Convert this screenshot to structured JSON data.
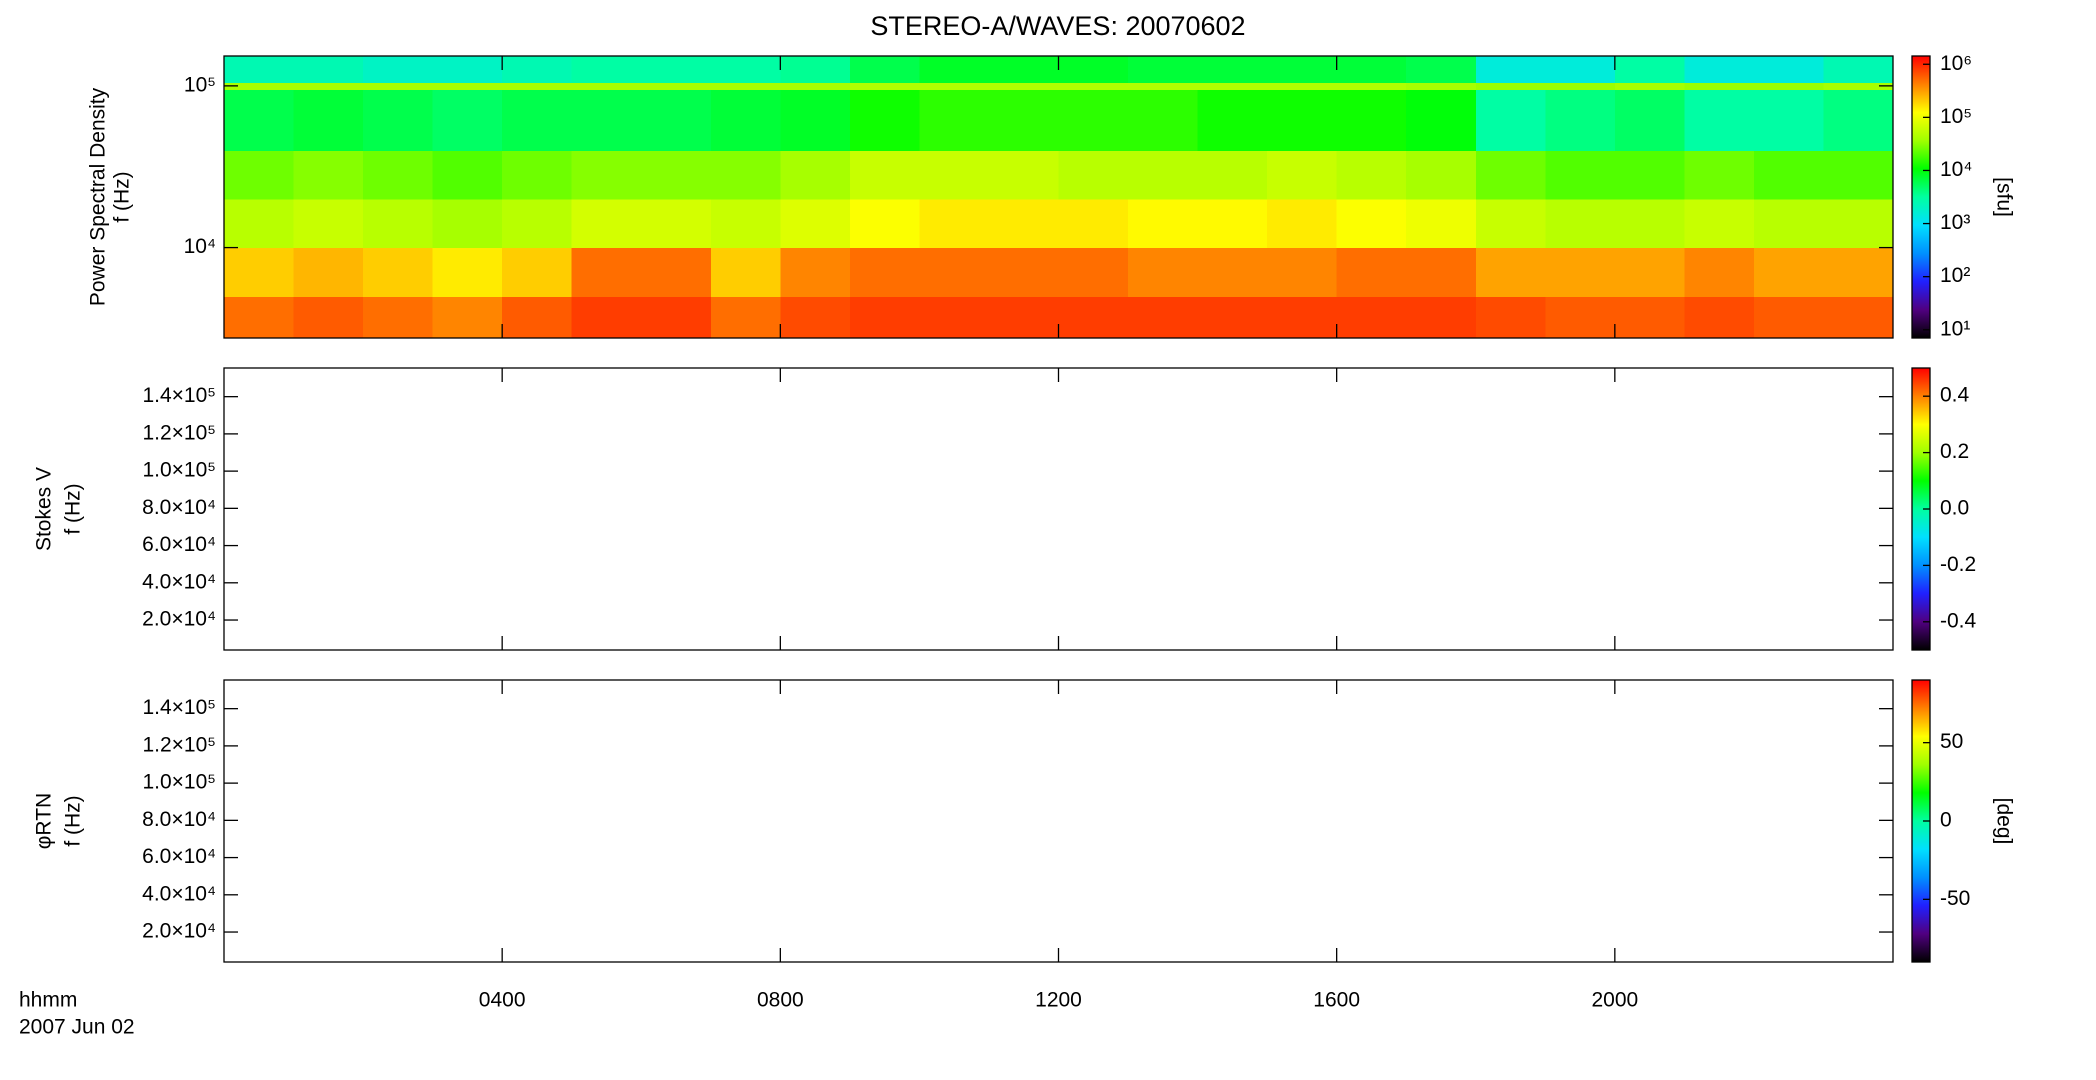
{
  "chart_data": [
    {
      "type": "heatmap",
      "title": "STEREO-A/WAVES: 20070602",
      "ylabel": [
        "Power Spectral Density",
        "f (Hz)"
      ],
      "ylog": true,
      "ylim": [
        2760,
        153000
      ],
      "yticks": [
        {
          "value": 10000,
          "label": "10⁴"
        },
        {
          "value": 100000,
          "label": "10⁵"
        }
      ],
      "xlim": [
        0,
        24
      ],
      "x_edges": [
        0,
        1,
        2,
        3,
        4,
        5,
        6,
        7,
        8,
        9,
        10,
        11,
        12,
        13,
        14,
        15,
        16,
        17,
        18,
        19,
        20,
        21,
        22,
        23,
        24
      ],
      "y_edges": [
        2760,
        5000,
        10000,
        20000,
        40000,
        95000,
        105000,
        153000
      ],
      "z": [
        [
          500000,
          600000,
          500000,
          400000,
          600000,
          800000,
          800000,
          500000,
          700000,
          800000,
          800000,
          800000,
          800000,
          800000,
          800000,
          800000,
          800000,
          800000,
          700000,
          600000,
          600000,
          700000,
          600000,
          600000
        ],
        [
          200000,
          250000,
          200000,
          150000,
          200000,
          500000,
          500000,
          200000,
          400000,
          500000,
          500000,
          500000,
          500000,
          400000,
          400000,
          400000,
          500000,
          500000,
          300000,
          300000,
          300000,
          400000,
          300000,
          300000
        ],
        [
          50000,
          60000,
          50000,
          40000,
          50000,
          70000,
          70000,
          60000,
          80000,
          120000,
          150000,
          150000,
          150000,
          130000,
          130000,
          150000,
          120000,
          100000,
          60000,
          50000,
          50000,
          60000,
          50000,
          50000
        ],
        [
          25000,
          30000,
          25000,
          20000,
          25000,
          30000,
          30000,
          30000,
          40000,
          60000,
          60000,
          60000,
          50000,
          50000,
          50000,
          60000,
          50000,
          40000,
          25000,
          20000,
          20000,
          25000,
          20000,
          20000
        ],
        [
          6000,
          7000,
          6000,
          5000,
          6000,
          6000,
          6000,
          7000,
          8000,
          12000,
          15000,
          15000,
          15000,
          15000,
          12000,
          12000,
          12000,
          10000,
          3000,
          4000,
          5000,
          3000,
          3000,
          4000
        ],
        [
          40000,
          40000,
          40000,
          40000,
          40000,
          40000,
          40000,
          40000,
          40000,
          45000,
          45000,
          45000,
          45000,
          45000,
          45000,
          45000,
          45000,
          40000,
          35000,
          35000,
          40000,
          35000,
          35000,
          40000
        ],
        [
          2500,
          2500,
          2000,
          2000,
          2500,
          3000,
          3000,
          3000,
          3500,
          6000,
          8000,
          8000,
          8000,
          7000,
          7000,
          7000,
          7000,
          6000,
          1500,
          1500,
          3000,
          1500,
          1500,
          2500
        ]
      ],
      "colormap": [
        "#000000",
        "#500080",
        "#2020ff",
        "#0090ff",
        "#00e0ff",
        "#00ffa0",
        "#00ff00",
        "#a0ff00",
        "#ffff00",
        "#ff8000",
        "#ff0000"
      ],
      "clog": true,
      "clim": [
        7,
        1430000
      ],
      "cticks": [
        {
          "value": 10,
          "label": "10¹"
        },
        {
          "value": 100,
          "label": "10²"
        },
        {
          "value": 1000,
          "label": "10³"
        },
        {
          "value": 10000,
          "label": "10⁴"
        },
        {
          "value": 100000,
          "label": "10⁵"
        },
        {
          "value": 1000000,
          "label": "10⁶"
        }
      ],
      "clabel": "[sfu]"
    },
    {
      "type": "heatmap",
      "ylabel": [
        "Stokes V",
        "f (Hz)"
      ],
      "ylim": [
        3900,
        155400
      ],
      "yticks": [
        {
          "value": 20000,
          "label": "2.0×10⁴"
        },
        {
          "value": 40000,
          "label": "4.0×10⁴"
        },
        {
          "value": 60000,
          "label": "6.0×10⁴"
        },
        {
          "value": 80000,
          "label": "8.0×10⁴"
        },
        {
          "value": 100000,
          "label": "1.0×10⁵"
        },
        {
          "value": 120000,
          "label": "1.2×10⁵"
        },
        {
          "value": 140000,
          "label": "1.4×10⁵"
        }
      ],
      "xlim": [
        0,
        24
      ],
      "clim": [
        -0.5,
        0.5
      ],
      "cticks": [
        -0.4,
        -0.2,
        {
          "value": 0,
          "label": "0.0"
        },
        0.2,
        0.4
      ]
    },
    {
      "type": "heatmap",
      "ylabel": [
        "φRTN",
        "f (Hz)"
      ],
      "ylim": [
        3900,
        155400
      ],
      "yticks": [
        {
          "value": 20000,
          "label": "2.0×10⁴"
        },
        {
          "value": 40000,
          "label": "4.0×10⁴"
        },
        {
          "value": 60000,
          "label": "6.0×10⁴"
        },
        {
          "value": 80000,
          "label": "8.0×10⁴"
        },
        {
          "value": 100000,
          "label": "1.0×10⁵"
        },
        {
          "value": 120000,
          "label": "1.2×10⁵"
        },
        {
          "value": 140000,
          "label": "1.4×10⁵"
        }
      ],
      "xlim": [
        0,
        24
      ],
      "xticks": [
        {
          "value": 4,
          "label": "0400"
        },
        {
          "value": 8,
          "label": "0800"
        },
        {
          "value": 12,
          "label": "1200"
        },
        {
          "value": 16,
          "label": "1600"
        },
        {
          "value": 20,
          "label": "2000"
        }
      ],
      "x_label": "hhmm",
      "date": "2007 Jun 02",
      "clim": [
        -90,
        90
      ],
      "cticks": [
        -50,
        0,
        50
      ],
      "clabel": "[deg]"
    }
  ]
}
